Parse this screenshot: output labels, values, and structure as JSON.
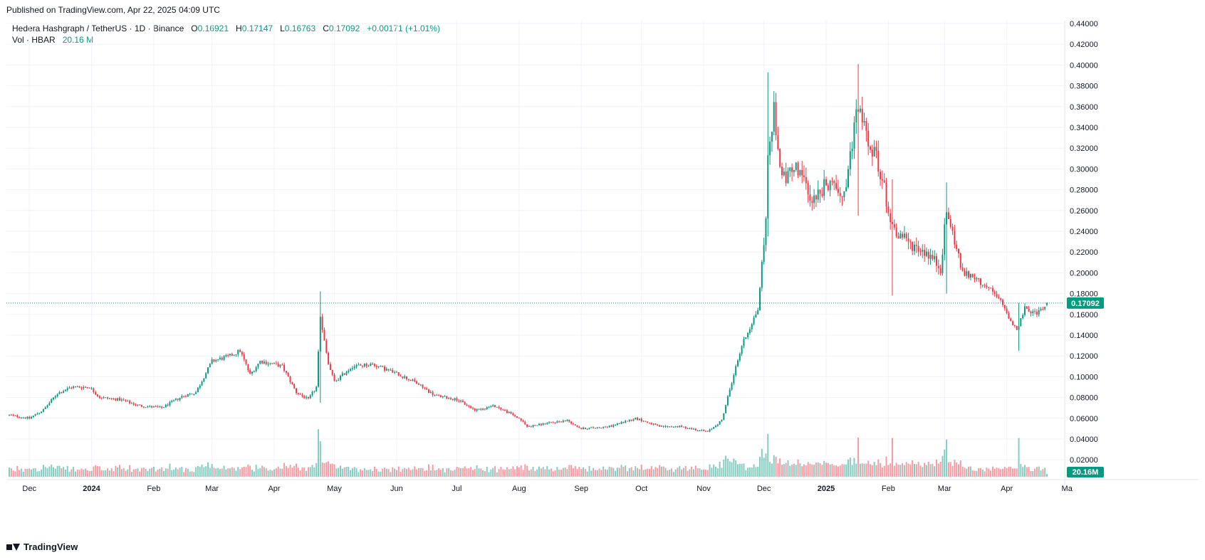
{
  "header": {
    "published": "Published on TradingView.com, Apr 22, 2025 04:09 UTC"
  },
  "legend": {
    "symbol": "Hedera Hashgraph / TetherUS · 1D · Binance",
    "o_label": "O",
    "o_value": "0.16921",
    "h_label": "H",
    "h_value": "0.17147",
    "l_label": "L",
    "l_value": "0.16763",
    "c_label": "C",
    "c_value": "0.17092",
    "change": "+0.00171 (+1.01%)",
    "vol_label": "Vol · HBAR",
    "vol_value": "20.16 M"
  },
  "footer": {
    "brand": "TradingView"
  },
  "colors": {
    "up": "#089981",
    "down": "#F23645",
    "grid": "#F0F3FA",
    "axis_text": "#131722"
  },
  "chart_data": {
    "type": "candlestick",
    "y_axis": {
      "min": 0.02,
      "max": 0.44,
      "ticks": [
        "0.44000",
        "0.42000",
        "0.40000",
        "0.38000",
        "0.36000",
        "0.34000",
        "0.32000",
        "0.30000",
        "0.28000",
        "0.26000",
        "0.24000",
        "0.22000",
        "0.20000",
        "0.18000",
        "0.16000",
        "0.14000",
        "0.12000",
        "0.10000",
        "0.08000",
        "0.06000",
        "0.04000",
        "0.02000"
      ]
    },
    "x_axis": {
      "labels": [
        "Dec",
        "2024",
        "Feb",
        "Mar",
        "Apr",
        "May",
        "Jun",
        "Jul",
        "Aug",
        "Sep",
        "Oct",
        "Nov",
        "Dec",
        "2025",
        "Feb",
        "Mar",
        "Apr",
        "Ma"
      ],
      "bold": [
        "2024",
        "2025"
      ]
    },
    "last_price": "0.17092",
    "last_volume": "20.16M",
    "close_series": [
      [
        "2023-11-21",
        0.063
      ],
      [
        "2023-12-01",
        0.06
      ],
      [
        "2023-12-08",
        0.068
      ],
      [
        "2023-12-15",
        0.084
      ],
      [
        "2023-12-22",
        0.09
      ],
      [
        "2023-12-31",
        0.09
      ],
      [
        "2024-01-05",
        0.08
      ],
      [
        "2024-01-15",
        0.078
      ],
      [
        "2024-01-25",
        0.072
      ],
      [
        "2024-02-05",
        0.07
      ],
      [
        "2024-02-15",
        0.081
      ],
      [
        "2024-02-22",
        0.085
      ],
      [
        "2024-03-01",
        0.115
      ],
      [
        "2024-03-10",
        0.12
      ],
      [
        "2024-03-15",
        0.125
      ],
      [
        "2024-03-20",
        0.102
      ],
      [
        "2024-03-25",
        0.115
      ],
      [
        "2024-04-05",
        0.11
      ],
      [
        "2024-04-12",
        0.085
      ],
      [
        "2024-04-18",
        0.078
      ],
      [
        "2024-04-22",
        0.09
      ],
      [
        "2024-04-24",
        0.155
      ],
      [
        "2024-04-28",
        0.112
      ],
      [
        "2024-05-01",
        0.095
      ],
      [
        "2024-05-10",
        0.11
      ],
      [
        "2024-05-20",
        0.112
      ],
      [
        "2024-06-01",
        0.103
      ],
      [
        "2024-06-10",
        0.095
      ],
      [
        "2024-06-20",
        0.082
      ],
      [
        "2024-07-01",
        0.078
      ],
      [
        "2024-07-10",
        0.068
      ],
      [
        "2024-07-20",
        0.072
      ],
      [
        "2024-08-01",
        0.06
      ],
      [
        "2024-08-05",
        0.052
      ],
      [
        "2024-08-15",
        0.055
      ],
      [
        "2024-08-25",
        0.058
      ],
      [
        "2024-09-01",
        0.05
      ],
      [
        "2024-09-15",
        0.052
      ],
      [
        "2024-09-28",
        0.06
      ],
      [
        "2024-10-10",
        0.052
      ],
      [
        "2024-10-20",
        0.052
      ],
      [
        "2024-11-03",
        0.047
      ],
      [
        "2024-11-10",
        0.058
      ],
      [
        "2024-11-15",
        0.095
      ],
      [
        "2024-11-20",
        0.13
      ],
      [
        "2024-11-28",
        0.165
      ],
      [
        "2024-12-02",
        0.25
      ],
      [
        "2024-12-03",
        0.32
      ],
      [
        "2024-12-06",
        0.355
      ],
      [
        "2024-12-10",
        0.29
      ],
      [
        "2024-12-18",
        0.3
      ],
      [
        "2024-12-25",
        0.27
      ],
      [
        "2025-01-01",
        0.285
      ],
      [
        "2025-01-10",
        0.278
      ],
      [
        "2025-01-17",
        0.36
      ],
      [
        "2025-01-22",
        0.33
      ],
      [
        "2025-01-27",
        0.305
      ],
      [
        "2025-02-03",
        0.245
      ],
      [
        "2025-02-10",
        0.23
      ],
      [
        "2025-02-20",
        0.22
      ],
      [
        "2025-02-27",
        0.205
      ],
      [
        "2025-03-02",
        0.258
      ],
      [
        "2025-03-05",
        0.24
      ],
      [
        "2025-03-10",
        0.2
      ],
      [
        "2025-03-20",
        0.19
      ],
      [
        "2025-03-28",
        0.175
      ],
      [
        "2025-04-06",
        0.145
      ],
      [
        "2025-04-10",
        0.165
      ],
      [
        "2025-04-15",
        0.16
      ],
      [
        "2025-04-21",
        0.17092
      ]
    ],
    "extremes": [
      [
        "2024-04-24",
        0.182,
        0.075
      ],
      [
        "2024-12-03",
        0.393,
        0.235
      ],
      [
        "2025-01-17",
        0.401,
        0.255
      ],
      [
        "2025-02-03",
        0.29,
        0.178
      ],
      [
        "2025-03-02",
        0.287,
        0.18
      ],
      [
        "2025-04-07",
        0.171,
        0.125
      ]
    ]
  }
}
